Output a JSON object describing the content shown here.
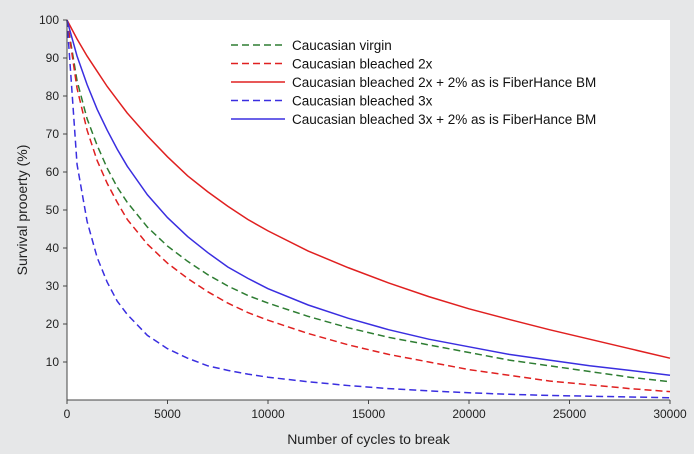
{
  "chart_data": {
    "type": "line",
    "xlabel": "Number of cycles to break",
    "ylabel": "Survival prooerty (%)",
    "xlim": [
      0,
      30000
    ],
    "ylim": [
      0,
      100
    ],
    "xticks": [
      0,
      5000,
      10000,
      15000,
      20000,
      25000,
      30000
    ],
    "yticks": [
      10,
      20,
      30,
      40,
      50,
      60,
      70,
      80,
      90,
      100
    ],
    "grid": false,
    "legend_position": "top-center",
    "x": [
      0,
      500,
      1000,
      1500,
      2000,
      2500,
      3000,
      4000,
      5000,
      6000,
      7000,
      8000,
      9000,
      10000,
      12000,
      14000,
      16000,
      18000,
      20000,
      22000,
      24000,
      26000,
      28000,
      30000
    ],
    "series": [
      {
        "name": "Caucasian virgin",
        "color": "#2e7d32",
        "dash": true,
        "values": [
          100,
          84,
          74,
          67,
          61,
          56,
          52,
          45.5,
          40.5,
          36.5,
          33,
          30,
          27.5,
          25.5,
          22,
          19,
          16.5,
          14.5,
          12.5,
          10.5,
          9,
          7.5,
          6,
          4.8
        ]
      },
      {
        "name": "Caucasian bleached 2x",
        "color": "#e02020",
        "dash": true,
        "values": [
          100,
          82,
          71,
          63,
          57,
          52,
          47.5,
          41,
          36,
          32,
          28.5,
          25.5,
          23,
          21,
          17.5,
          14.5,
          12,
          10,
          8,
          6.5,
          5,
          4,
          3,
          2.2
        ]
      },
      {
        "name": "Caucasian bleached 2x + 2% as is FiberHance BM",
        "color": "#e02020",
        "dash": false,
        "values": [
          100,
          95,
          90.5,
          86.5,
          82.5,
          79,
          75.5,
          69.5,
          64,
          59,
          54.8,
          51,
          47.5,
          44.5,
          39.2,
          34.8,
          30.8,
          27.2,
          24,
          21.2,
          18.5,
          16,
          13.5,
          11
        ]
      },
      {
        "name": "Caucasian bleached 3x",
        "color": "#3a2ee0",
        "dash": true,
        "values": [
          100,
          62,
          47,
          37.5,
          31,
          26,
          22.5,
          17,
          13.5,
          11,
          9,
          7.8,
          6.8,
          6,
          4.8,
          3.8,
          3,
          2.4,
          1.9,
          1.5,
          1.2,
          1,
          0.8,
          0.6
        ]
      },
      {
        "name": "Caucasian bleached 3x + 2% as is FiberHance BM",
        "color": "#3a2ee0",
        "dash": false,
        "values": [
          100,
          90.5,
          83,
          76.5,
          71,
          66,
          61.5,
          54,
          48,
          43,
          38.8,
          35,
          32,
          29.3,
          25,
          21.5,
          18.5,
          16,
          14,
          12,
          10.5,
          9,
          7.8,
          6.5
        ]
      }
    ]
  }
}
